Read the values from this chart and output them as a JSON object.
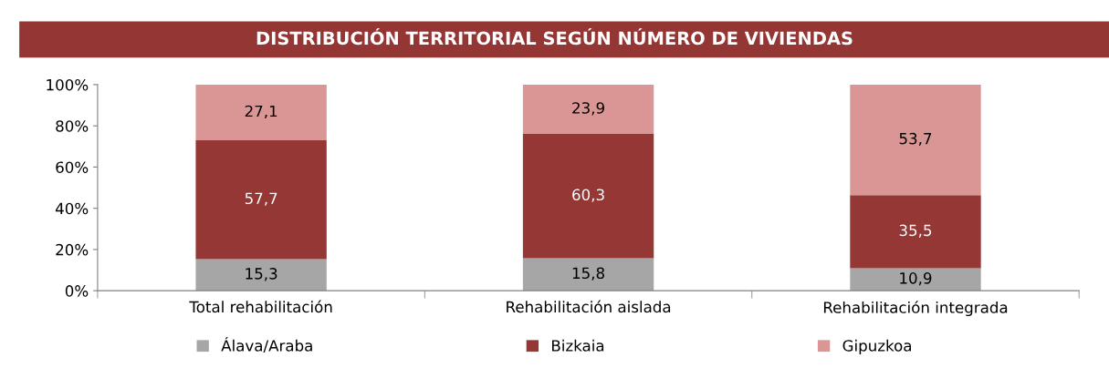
{
  "chart_data": {
    "type": "bar",
    "stacked": true,
    "title": "DISTRIBUCIÓN TERRITORIAL SEGÚN NÚMERO DE VIVIENDAS",
    "categories": [
      "Total rehabilitación",
      "Rehabilitación aislada",
      "Rehabilitación integrada"
    ],
    "series": [
      {
        "name": "Álava/Araba",
        "color": "#a6a6a6",
        "values": [
          15.3,
          15.8,
          10.9
        ],
        "value_labels": [
          "15,3",
          "15,8",
          "10,9"
        ]
      },
      {
        "name": "Bizkaia",
        "color": "#953735",
        "values": [
          57.7,
          60.3,
          35.5
        ],
        "value_labels": [
          "57,7",
          "60,3",
          "35,5"
        ]
      },
      {
        "name": "Gipuzkoa",
        "color": "#d99694",
        "values": [
          27.1,
          23.9,
          53.7
        ],
        "value_labels": [
          "27,1",
          "23,9",
          "53,7"
        ]
      }
    ],
    "ylim": [
      0,
      100
    ],
    "yticks": [
      {
        "value": 0,
        "label": "0%"
      },
      {
        "value": 20,
        "label": "20%"
      },
      {
        "value": 40,
        "label": "40%"
      },
      {
        "value": 60,
        "label": "60%"
      },
      {
        "value": 80,
        "label": "80%"
      },
      {
        "value": 100,
        "label": "100%"
      }
    ],
    "grid": false,
    "legend": "bottom"
  }
}
